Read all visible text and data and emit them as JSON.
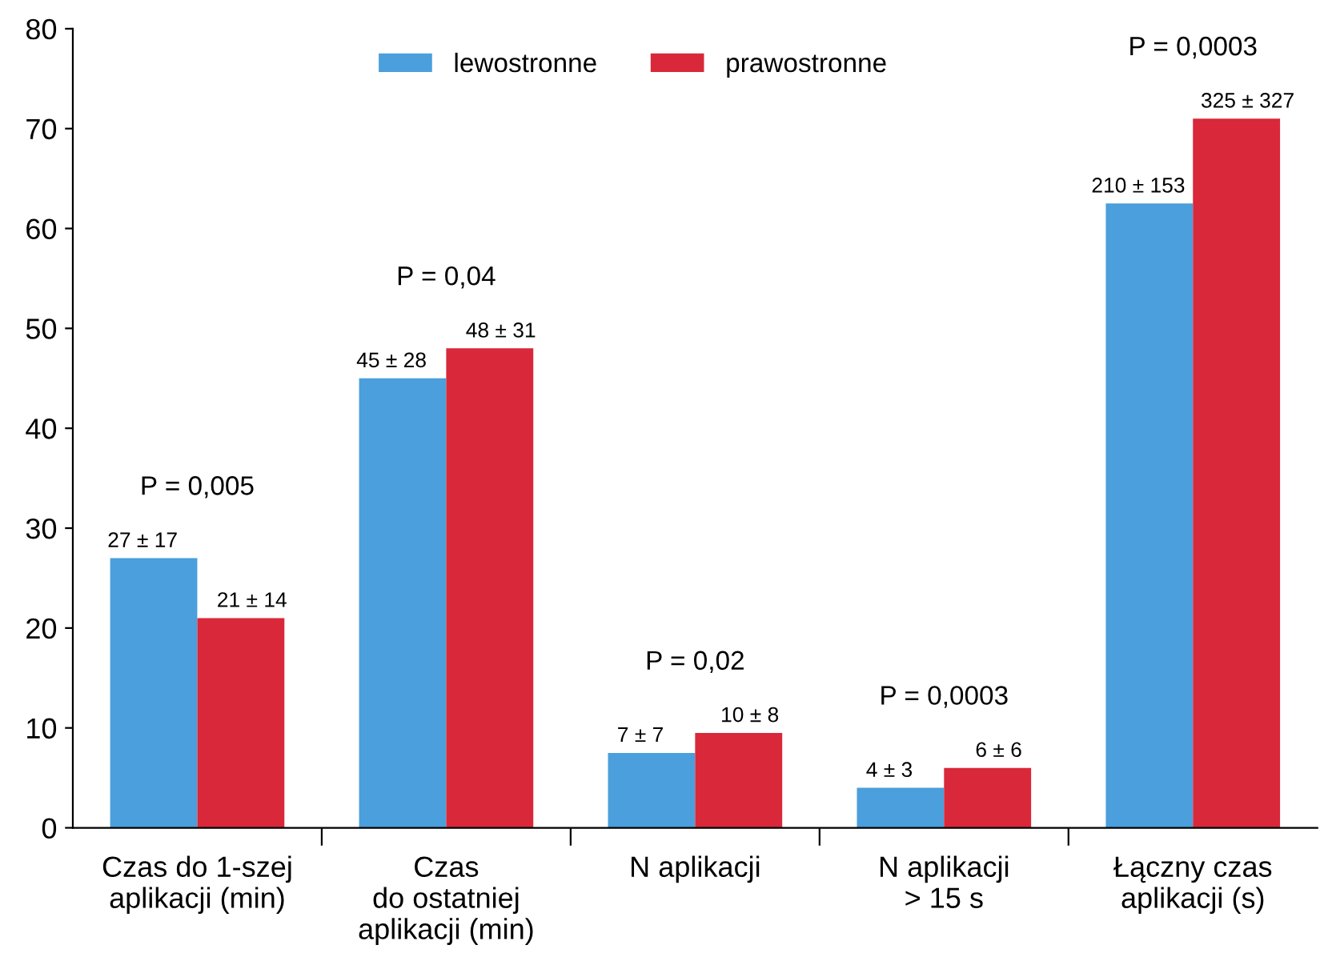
{
  "chart_data": {
    "type": "bar",
    "categories": [
      "Czas do 1-szej\naplikacji (min)",
      "Czas\ndo ostatniej\naplikacji (min)",
      "N aplikacji",
      "N aplikacji\n> 15 s",
      "Łączny czas\naplikacji (s)"
    ],
    "series": [
      {
        "name": "lewostronne",
        "color": "#4a9fdc",
        "values": [
          27,
          45,
          7.5,
          4,
          62.5
        ],
        "value_labels": [
          "27 ± 17",
          "45 ± 28",
          "7 ± 7",
          "4 ± 3",
          null
        ]
      },
      {
        "name": "prawostronne",
        "color": "#d8283a",
        "values": [
          21,
          48,
          9.5,
          6,
          71
        ],
        "value_labels": [
          "21 ± 14",
          "48 ± 31",
          "10 ± 8",
          "6 ± 6",
          null
        ]
      }
    ],
    "ylim": [
      0,
      80
    ],
    "yticks": [
      0,
      10,
      20,
      30,
      40,
      50,
      60,
      70,
      80
    ],
    "grid": false,
    "legend": "top",
    "annotations": [
      "P = 0,005",
      "P = 0,04",
      "P = 0,02",
      "P = 0,0003",
      "P = 0,0003",
      "210 ± 153",
      "325 ± 327"
    ]
  }
}
